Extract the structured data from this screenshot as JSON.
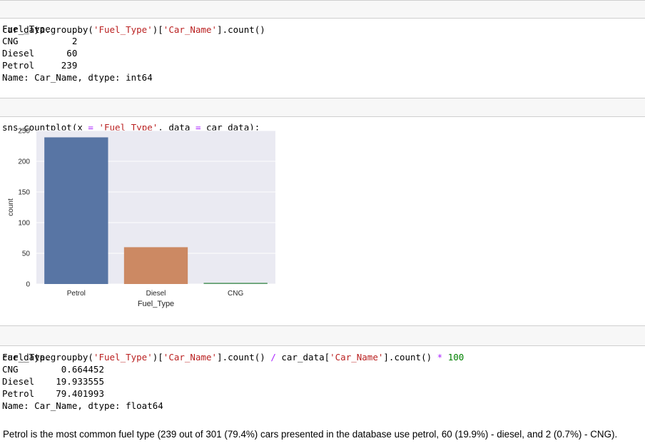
{
  "cells": [
    {
      "input_parts": [
        {
          "t": "car_data.groupby(",
          "c": ""
        },
        {
          "t": "'Fuel_Type'",
          "c": "str"
        },
        {
          "t": ")[",
          "c": ""
        },
        {
          "t": "'Car_Name'",
          "c": "str"
        },
        {
          "t": "].count()",
          "c": ""
        }
      ],
      "output_lines": [
        "Fuel_Type",
        "CNG          2",
        "Diesel      60",
        "Petrol     239",
        "Name: Car_Name, dtype: int64"
      ]
    },
    {
      "input_parts": [
        {
          "t": "sns.countplot(x ",
          "c": ""
        },
        {
          "t": "=",
          "c": "op"
        },
        {
          "t": " ",
          "c": ""
        },
        {
          "t": "'Fuel_Type'",
          "c": "str"
        },
        {
          "t": ", data ",
          "c": ""
        },
        {
          "t": "=",
          "c": "op"
        },
        {
          "t": " car_data);",
          "c": ""
        }
      ]
    },
    {
      "input_parts": [
        {
          "t": "car_data.groupby(",
          "c": ""
        },
        {
          "t": "'Fuel_Type'",
          "c": "str"
        },
        {
          "t": ")[",
          "c": ""
        },
        {
          "t": "'Car_Name'",
          "c": "str"
        },
        {
          "t": "].count() ",
          "c": ""
        },
        {
          "t": "/",
          "c": "op"
        },
        {
          "t": " car_data[",
          "c": ""
        },
        {
          "t": "'Car_Name'",
          "c": "str"
        },
        {
          "t": "].count() ",
          "c": ""
        },
        {
          "t": "*",
          "c": "op"
        },
        {
          "t": " ",
          "c": ""
        },
        {
          "t": "100",
          "c": "num"
        }
      ],
      "output_lines": [
        "Fuel_Type",
        "CNG        0.664452",
        "Diesel    19.933555",
        "Petrol    79.401993",
        "Name: Car_Name, dtype: float64"
      ]
    }
  ],
  "chart_data": {
    "type": "bar",
    "categories": [
      "Petrol",
      "Diesel",
      "CNG"
    ],
    "values": [
      239,
      60,
      2
    ],
    "colors": [
      "#5875a4",
      "#cc8963",
      "#5f9e6e"
    ],
    "xlabel": "Fuel_Type",
    "ylabel": "count",
    "ylim": [
      0,
      250
    ],
    "yticks": [
      "0",
      "50",
      "100",
      "150",
      "200",
      "250"
    ],
    "grid": true,
    "background": "#eaeaf2"
  },
  "markdown": "Petrol is the most common fuel type (239 out of 301 (79.4%) cars presented in the database use petrol, 60 (19.9%) - diesel, and 2 (0.7%) - CNG)."
}
